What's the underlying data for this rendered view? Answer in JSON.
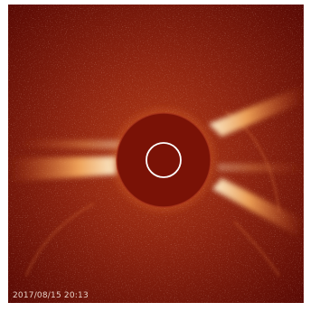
{
  "image": {
    "timestamp": "2017/08/15 20:13",
    "colors": {
      "background": "#ffffff",
      "corona_dark": "#5a0a04",
      "corona_mid": "#9a2a10",
      "occulter": "#7a1206",
      "streamer_bright": "#fff1c8",
      "sun_ring": "#ffffff"
    },
    "icons": [
      "sun-outline-circle-icon"
    ]
  }
}
